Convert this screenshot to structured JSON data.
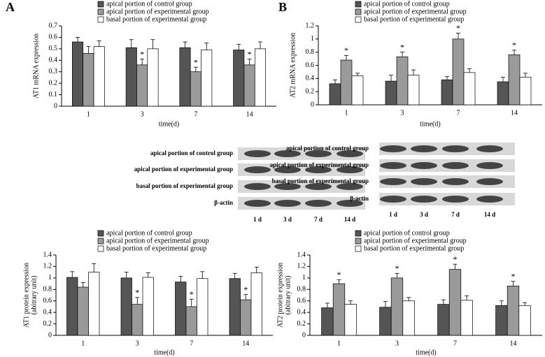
{
  "panels": [
    "A",
    "B"
  ],
  "blots": [
    {
      "rows": [
        "apical portion of control group",
        "apical portion of experimental group",
        "basal portion of experimental group",
        "β-actin"
      ],
      "lanes": [
        "1 d",
        "3 d",
        "7 d",
        "14 d"
      ]
    },
    {
      "rows": [
        "apical portion of control group",
        "apical portion of experimental group",
        "basal portion of experimental group",
        "β-actin"
      ],
      "lanes": [
        "1 d",
        "3 d",
        "7 d",
        "14 d"
      ]
    }
  ],
  "chart_data": [
    {
      "type": "bar",
      "y_label": [
        "AT1 mRNA expression"
      ],
      "x_label": "time(d)",
      "categories": [
        "1",
        "3",
        "7",
        "14"
      ],
      "ylim": [
        0,
        0.7
      ],
      "yticks": [
        0,
        0.1,
        0.2,
        0.3,
        0.4,
        0.5,
        0.6,
        0.7
      ],
      "series": [
        {
          "name": "apical portion of control group",
          "color": "#555555",
          "values": [
            0.56,
            0.51,
            0.51,
            0.49
          ],
          "errors": [
            0.04,
            0.07,
            0.05,
            0.05
          ],
          "labels": [
            null,
            null,
            null,
            null
          ]
        },
        {
          "name": "apical portion of experimental group",
          "color": "#9a9a9a",
          "values": [
            0.46,
            0.36,
            0.3,
            0.36
          ],
          "errors": [
            0.06,
            0.05,
            0.04,
            0.05
          ],
          "labels": [
            null,
            "*",
            "*",
            "*"
          ]
        },
        {
          "name": "basal portion of experimental group",
          "color": "#ffffff",
          "values": [
            0.52,
            0.5,
            0.49,
            0.5
          ],
          "errors": [
            0.05,
            0.08,
            0.06,
            0.06
          ],
          "labels": [
            null,
            null,
            null,
            null
          ]
        }
      ]
    },
    {
      "type": "bar",
      "y_label": [
        "AT2 mRNA expression"
      ],
      "x_label": "time(d)",
      "categories": [
        "1",
        "3",
        "7",
        "14"
      ],
      "ylim": [
        0,
        1.2
      ],
      "yticks": [
        0,
        0.2,
        0.4,
        0.6,
        0.8,
        1,
        1.2
      ],
      "series": [
        {
          "name": "apical portion of control group",
          "color": "#555555",
          "values": [
            0.32,
            0.36,
            0.38,
            0.35
          ],
          "errors": [
            0.06,
            0.09,
            0.05,
            0.07
          ],
          "labels": [
            null,
            null,
            null,
            null
          ]
        },
        {
          "name": "apical portion of experimental group",
          "color": "#9a9a9a",
          "values": [
            0.68,
            0.73,
            1.0,
            0.76
          ],
          "errors": [
            0.07,
            0.07,
            0.09,
            0.07
          ],
          "labels": [
            "*",
            "*",
            "*",
            "*"
          ]
        },
        {
          "name": "basal portion of experimental group",
          "color": "#ffffff",
          "values": [
            0.44,
            0.45,
            0.49,
            0.42
          ],
          "errors": [
            0.04,
            0.08,
            0.06,
            0.06
          ],
          "labels": [
            null,
            null,
            null,
            null
          ]
        }
      ]
    },
    {
      "type": "bar",
      "y_label": [
        "AT1 protein expression",
        "(abitrary unit)"
      ],
      "x_label": "time(d)",
      "categories": [
        "1",
        "3",
        "7",
        "14"
      ],
      "ylim": [
        0,
        1.4
      ],
      "yticks": [
        0,
        0.2,
        0.4,
        0.6,
        0.8,
        1,
        1.2,
        1.4
      ],
      "series": [
        {
          "name": "apical portion of control group",
          "color": "#555555",
          "values": [
            1.01,
            1.0,
            0.93,
            0.99
          ],
          "errors": [
            0.1,
            0.1,
            0.1,
            0.09
          ],
          "labels": [
            null,
            null,
            null,
            null
          ]
        },
        {
          "name": "apical portion of experimental group",
          "color": "#9a9a9a",
          "values": [
            0.84,
            0.54,
            0.5,
            0.62
          ],
          "errors": [
            0.08,
            0.12,
            0.13,
            0.09
          ],
          "labels": [
            null,
            "*",
            "*",
            "*"
          ]
        },
        {
          "name": "basal portion of experimental group",
          "color": "#ffffff",
          "values": [
            1.1,
            1.01,
            0.99,
            1.09
          ],
          "errors": [
            0.15,
            0.08,
            0.12,
            0.1
          ],
          "labels": [
            null,
            null,
            null,
            null
          ]
        }
      ]
    },
    {
      "type": "bar",
      "y_label": [
        "AT2 protein expression",
        "(abitrary unit)"
      ],
      "x_label": "time(d)",
      "categories": [
        "1",
        "3",
        "7",
        "14"
      ],
      "ylim": [
        0,
        1.4
      ],
      "yticks": [
        0,
        0.2,
        0.4,
        0.6,
        0.8,
        1,
        1.2,
        1.4
      ],
      "series": [
        {
          "name": "apical portion of control group",
          "color": "#555555",
          "values": [
            0.48,
            0.49,
            0.54,
            0.52
          ],
          "errors": [
            0.08,
            0.1,
            0.08,
            0.08
          ],
          "labels": [
            null,
            null,
            null,
            null
          ]
        },
        {
          "name": "apical portion of experimental group",
          "color": "#9a9a9a",
          "values": [
            0.9,
            1.0,
            1.15,
            0.86
          ],
          "errors": [
            0.07,
            0.08,
            0.09,
            0.08
          ],
          "labels": [
            "*",
            "*",
            "*",
            "*"
          ]
        },
        {
          "name": "basal portion of experimental group",
          "color": "#ffffff",
          "values": [
            0.54,
            0.6,
            0.61,
            0.52
          ],
          "errors": [
            0.06,
            0.06,
            0.08,
            0.05
          ],
          "labels": [
            null,
            null,
            null,
            null
          ]
        }
      ]
    }
  ]
}
